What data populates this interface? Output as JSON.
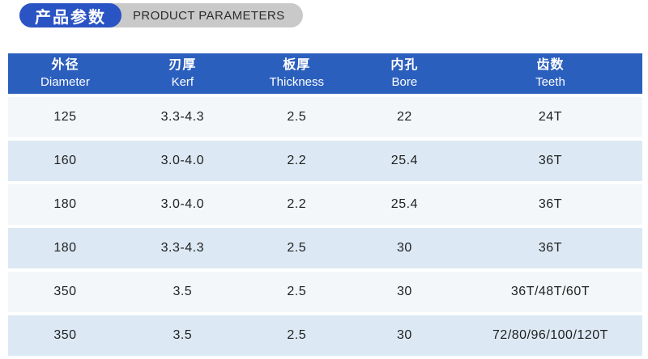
{
  "title": {
    "zh": "产品参数",
    "en": "PRODUCT PARAMETERS"
  },
  "colors": {
    "pill_blue": "#2a53c3",
    "pill_gray": "#c9c9c9",
    "header_blue": "#2b5fbe",
    "row_light": "#f3f7fa",
    "row_dark": "#dce9f4"
  },
  "table": {
    "columns": [
      {
        "zh": "外径",
        "en": "Diameter"
      },
      {
        "zh": "刃厚",
        "en": "Kerf"
      },
      {
        "zh": "板厚",
        "en": "Thickness"
      },
      {
        "zh": "内孔",
        "en": "Bore"
      },
      {
        "zh": "齿数",
        "en": "Teeth"
      }
    ],
    "rows": [
      [
        "125",
        "3.3-4.3",
        "2.5",
        "22",
        "24T"
      ],
      [
        "160",
        "3.0-4.0",
        "2.2",
        "25.4",
        "36T"
      ],
      [
        "180",
        "3.0-4.0",
        "2.2",
        "25.4",
        "36T"
      ],
      [
        "180",
        "3.3-4.3",
        "2.5",
        "30",
        "36T"
      ],
      [
        "350",
        "3.5",
        "2.5",
        "30",
        "36T/48T/60T"
      ],
      [
        "350",
        "3.5",
        "2.5",
        "30",
        "72/80/96/100/120T"
      ]
    ]
  }
}
